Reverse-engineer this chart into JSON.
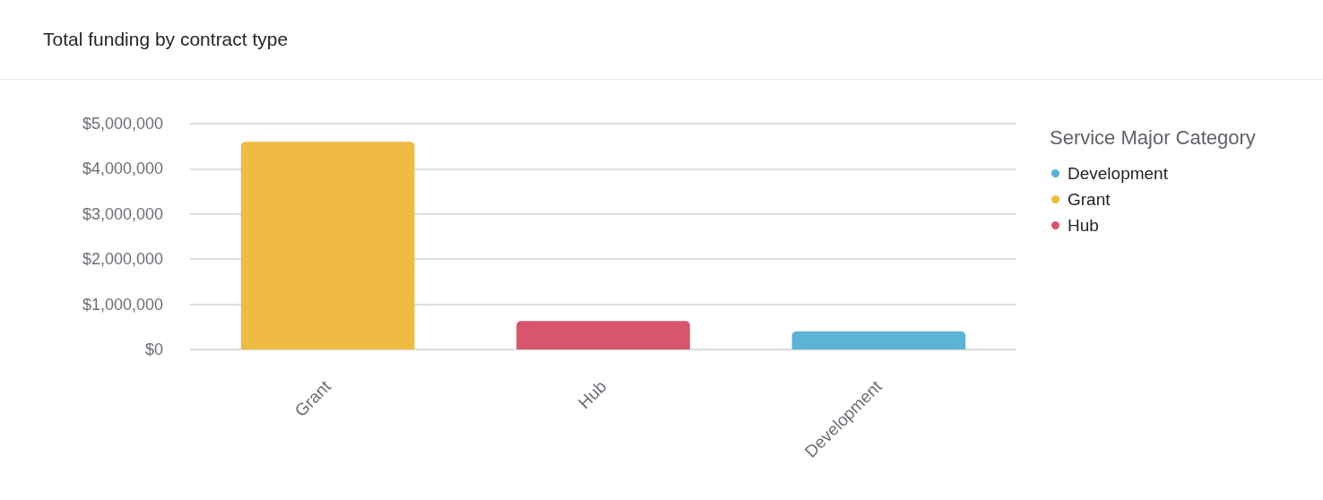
{
  "chart_data": {
    "type": "bar",
    "title": "Total funding by contract type",
    "categories": [
      "Grant",
      "Hub",
      "Development"
    ],
    "series": [
      {
        "name": "Development",
        "color": "#5cb3d6",
        "values": [
          null,
          null,
          400000
        ]
      },
      {
        "name": "Grant",
        "color": "#efbb43",
        "values": [
          4600000,
          null,
          null
        ]
      },
      {
        "name": "Hub",
        "color": "#d7566d",
        "values": [
          null,
          630000,
          null
        ]
      }
    ],
    "ylim": [
      0,
      5000000
    ],
    "yticks": [
      {
        "value": 0,
        "label": "$0"
      },
      {
        "value": 1000000,
        "label": "$1,000,000"
      },
      {
        "value": 2000000,
        "label": "$2,000,000"
      },
      {
        "value": 3000000,
        "label": "$3,000,000"
      },
      {
        "value": 4000000,
        "label": "$4,000,000"
      },
      {
        "value": 5000000,
        "label": "$5,000,000"
      }
    ],
    "grid": "y",
    "legend": "right",
    "legend_title": "Service Major Category"
  }
}
